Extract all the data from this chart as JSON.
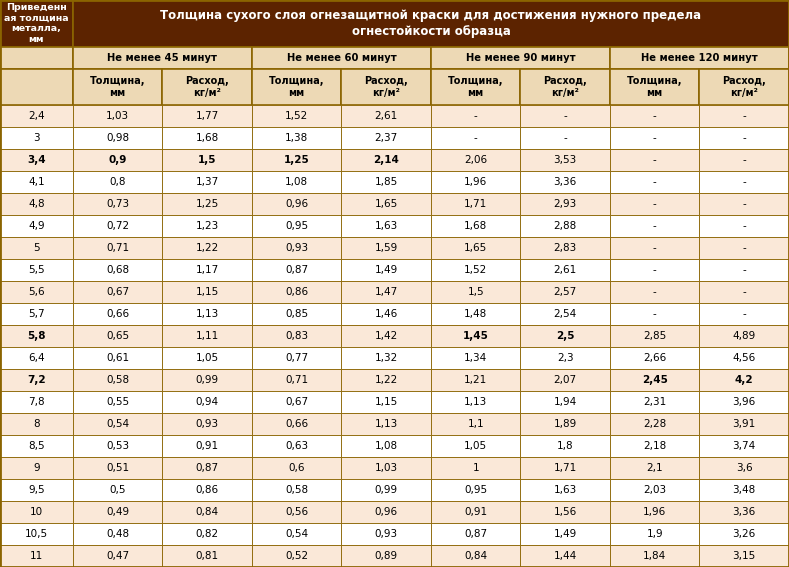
{
  "title": "Толщина сухого слоя огнезащитной краски для достижения нужного предела\nогнестойкости образца",
  "col0_header": "Приведенн\nая толщина\nметалла,\nмм",
  "group_headers": [
    "Не менее 45 минут",
    "Не менее 60 минут",
    "Не менее 90 минут",
    "Не менее 120 минут"
  ],
  "sub_headers": [
    "Толщина,\nмм",
    "Расход,\nкг/м²"
  ],
  "rows": [
    [
      "2,4",
      "1,03",
      "1,77",
      "1,52",
      "2,61",
      "-",
      "-",
      "-",
      "-"
    ],
    [
      "3",
      "0,98",
      "1,68",
      "1,38",
      "2,37",
      "-",
      "-",
      "-",
      "-"
    ],
    [
      "3,4",
      "0,9",
      "1,5",
      "1,25",
      "2,14",
      "2,06",
      "3,53",
      "-",
      "-"
    ],
    [
      "4,1",
      "0,8",
      "1,37",
      "1,08",
      "1,85",
      "1,96",
      "3,36",
      "-",
      "-"
    ],
    [
      "4,8",
      "0,73",
      "1,25",
      "0,96",
      "1,65",
      "1,71",
      "2,93",
      "-",
      "-"
    ],
    [
      "4,9",
      "0,72",
      "1,23",
      "0,95",
      "1,63",
      "1,68",
      "2,88",
      "-",
      "-"
    ],
    [
      "5",
      "0,71",
      "1,22",
      "0,93",
      "1,59",
      "1,65",
      "2,83",
      "-",
      "-"
    ],
    [
      "5,5",
      "0,68",
      "1,17",
      "0,87",
      "1,49",
      "1,52",
      "2,61",
      "-",
      "-"
    ],
    [
      "5,6",
      "0,67",
      "1,15",
      "0,86",
      "1,47",
      "1,5",
      "2,57",
      "-",
      "-"
    ],
    [
      "5,7",
      "0,66",
      "1,13",
      "0,85",
      "1,46",
      "1,48",
      "2,54",
      "-",
      "-"
    ],
    [
      "5,8",
      "0,65",
      "1,11",
      "0,83",
      "1,42",
      "1,45",
      "2,5",
      "2,85",
      "4,89"
    ],
    [
      "6,4",
      "0,61",
      "1,05",
      "0,77",
      "1,32",
      "1,34",
      "2,3",
      "2,66",
      "4,56"
    ],
    [
      "7,2",
      "0,58",
      "0,99",
      "0,71",
      "1,22",
      "1,21",
      "2,07",
      "2,45",
      "4,2"
    ],
    [
      "7,8",
      "0,55",
      "0,94",
      "0,67",
      "1,15",
      "1,13",
      "1,94",
      "2,31",
      "3,96"
    ],
    [
      "8",
      "0,54",
      "0,93",
      "0,66",
      "1,13",
      "1,1",
      "1,89",
      "2,28",
      "3,91"
    ],
    [
      "8,5",
      "0,53",
      "0,91",
      "0,63",
      "1,08",
      "1,05",
      "1,8",
      "2,18",
      "3,74"
    ],
    [
      "9",
      "0,51",
      "0,87",
      "0,6",
      "1,03",
      "1",
      "1,71",
      "2,1",
      "3,6"
    ],
    [
      "9,5",
      "0,5",
      "0,86",
      "0,58",
      "0,99",
      "0,95",
      "1,63",
      "2,03",
      "3,48"
    ],
    [
      "10",
      "0,49",
      "0,84",
      "0,56",
      "0,96",
      "0,91",
      "1,56",
      "1,96",
      "3,36"
    ],
    [
      "10,5",
      "0,48",
      "0,82",
      "0,54",
      "0,93",
      "0,87",
      "1,49",
      "1,9",
      "3,26"
    ],
    [
      "11",
      "0,47",
      "0,81",
      "0,52",
      "0,89",
      "0,84",
      "1,44",
      "1,84",
      "3,15"
    ]
  ],
  "bold_rows": [
    2,
    10,
    12
  ],
  "bold_cells": {
    "2": [
      1,
      2,
      3,
      4
    ],
    "10": [
      5,
      6
    ],
    "12": [
      7,
      8
    ]
  },
  "color_header_bg": "#5C2300",
  "color_header_text": "#FFFFFF",
  "color_group_bg": "#EDD9B5",
  "color_group_text": "#000000",
  "color_subheader_bg": "#EDD9B5",
  "color_even_row": "#FAE8D8",
  "color_odd_row": "#FFFFFF",
  "color_border": "#8B6400",
  "color_col0_bg_even": "#F5E0CC",
  "color_col0_bg_odd": "#FFFFFF"
}
